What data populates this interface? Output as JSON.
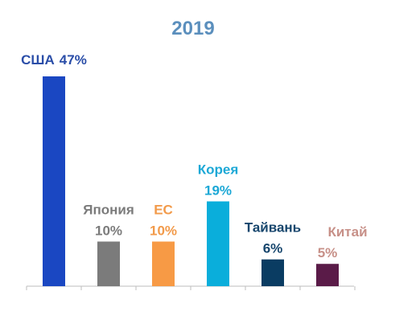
{
  "chart_data": {
    "type": "bar",
    "title": "2019",
    "title_color": "#5b8fbd",
    "xlabel": "",
    "ylabel": "",
    "ylim": [
      0,
      47
    ],
    "grid": false,
    "legend": "none",
    "categories": [
      "США",
      "Япония",
      "ЕС",
      "Корея",
      "Тайвань",
      "Китай"
    ],
    "values": [
      47,
      10,
      10,
      19,
      6,
      5
    ],
    "value_labels": [
      "47%",
      "10%",
      "10%",
      "19%",
      "6%",
      "5%"
    ],
    "bar_colors": [
      "#1a47c2",
      "#7b7b7b",
      "#f79a45",
      "#0aaedb",
      "#0a3c62",
      "#5a1b48"
    ],
    "label_colors": [
      "#2b4ea8",
      "#7b7b7b",
      "#f29a4a",
      "#1ca8d6",
      "#17466d",
      "#c79088"
    ]
  }
}
